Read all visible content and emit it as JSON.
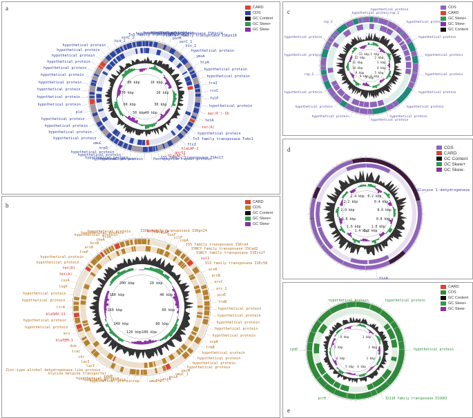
{
  "panels": {
    "a": {
      "label": "a",
      "legend": [
        {
          "name": "CARD",
          "color": "#d94432"
        },
        {
          "name": "CDS",
          "color": "#2c44a3"
        },
        {
          "name": "GC Content",
          "color": "#111111"
        },
        {
          "name": "GC Skew+",
          "color": "#2f9a4f"
        },
        {
          "name": "GC Skew-",
          "color": "#8b2fa3"
        }
      ],
      "ticks": [
        "10 kbp",
        "20 kbp",
        "30 kbp",
        "40 kbp",
        "50 kbp",
        "60 kbp",
        "70 kbp",
        "80 kbp"
      ],
      "genes": [
        "hin_2",
        "xerC_2",
        "Tn3 family transposase TnAs3",
        "hypothetical protein",
        "hypothetical protein",
        "hypothetical protein",
        "IS6 family transposase ISKpn24",
        "ISKra4 family transposase ISKpn19",
        "parM",
        "xerC_1",
        "hin_1",
        "hypothetical protein",
        "ymoA",
        "hlyA",
        "hypothetical protein",
        "hypothetical protein",
        "traI",
        "rcsC",
        "fulP",
        "hypothetical protein",
        "aac(6')-Ib",
        "tetA",
        "tet(A)",
        "hypothetical protein",
        "Tn3 family transposase TnAs1",
        "ftsI",
        "blaLAP-2",
        "qnrS1",
        "blaLAP-2",
        "IS5 family transposase ISAs17",
        "Pentapeptide repeat protein",
        "hypothetical protein",
        "hypothetical protein",
        "hypothetical protein",
        "hypothetical protein",
        "hypothetical protein",
        "nrpQ",
        "umuC",
        "hypothetical protein",
        "hypothetical protein",
        "hypothetical protein",
        "hypothetical protein",
        "pld",
        "hypothetical protein",
        "hypothetical protein",
        "hypothetical protein",
        "hypothetical protein",
        "hypothetical protein",
        "hypothetical protein",
        "hypothetical protein",
        "hypothetical protein",
        "hypothetical protein",
        "hypothetical protein"
      ]
    },
    "b": {
      "label": "b",
      "legend": [
        {
          "name": "CARD",
          "color": "#d94432"
        },
        {
          "name": "CDS",
          "color": "#b6812f"
        },
        {
          "name": "GC Content",
          "color": "#111111"
        },
        {
          "name": "GC Skew+",
          "color": "#2f9a4f"
        },
        {
          "name": "GC Skew-",
          "color": "#8b2fa3"
        }
      ],
      "ticks": [
        "20 kbp",
        "40 kbp",
        "60 kbp",
        "80 kbp",
        "100 kbp",
        "120 kbp",
        "140 kbp",
        "160 kbp",
        "180 kbp",
        "200 kbp"
      ],
      "genes": [
        "IS66 family transposase ISKpn24",
        "APH(3')-Ia",
        "cusS",
        "cusC",
        "cusF",
        "silP",
        "copA",
        "IS5 family transposase ISKra4",
        "ISNCY family transposase ISCad2",
        "ISNCY family transposase ISEcn27",
        "sul1",
        "IS3 family transposase ISEc58",
        "arsR",
        "arsB",
        "arsC",
        "ars_1",
        "pcoE",
        "traB",
        "hypothetical protein",
        "hypothetical protein",
        "hypothetical protein",
        "hypothetical protein",
        "hypothetical protein",
        "sipA",
        "trbB",
        "hypothetical protein",
        "hypothetical protein",
        "hypothetical protein",
        "hypothetical protein",
        "parM",
        "umuC_1",
        "psiA",
        "virB",
        "xerC_1",
        "umuC_2",
        "rep",
        "hypothetical protein",
        "hypothetical protein",
        "hypothetical protein",
        "pdeB",
        "Glycine betaine transporter",
        "Zinc-type alcohol dehydrogenase-like protein",
        "lacY",
        "lacI",
        "cdr",
        "trac",
        "dcm",
        "blaTEM-1",
        "mrx",
        "hypothetical protein",
        "hypothetical protein",
        "blaSHV-11",
        "ltrA",
        "hypothetical protein",
        "hypothetical protein",
        "logP",
        "cusA",
        "tet(A)",
        "tet(D)",
        "hypothetical protein",
        "hypothetical protein",
        "frmP",
        "arsB",
        "bcsB",
        "cheA",
        "rcsA",
        "hypothetical protein",
        "hypothetical protein",
        "hypothetical protein"
      ]
    },
    "c": {
      "label": "c",
      "legend": [
        {
          "name": "CDS",
          "color": "#8e63b8"
        },
        {
          "name": "CARD",
          "color": "#d94432"
        },
        {
          "name": "GC Skew+",
          "color": "#2f9a4f"
        },
        {
          "name": "GC Skew-",
          "color": "#8b2fa3"
        },
        {
          "name": "GC Content",
          "color": "#111111"
        }
      ],
      "ticks": [
        "1 kbp",
        "2 kbp",
        "3 kbp",
        "4 kbp",
        "5 kbp",
        "6 kbp",
        "7 kbp",
        "8 kbp",
        "9 kbp",
        "10 kbp",
        "11 kbp",
        "12 kbp",
        "13 kbp"
      ],
      "genes": [
        "hypothetical protein",
        "hypothetical protein",
        "rop_1",
        "hypothetical protein",
        "hypothetical protein",
        "hypothetical protein",
        "hypothetical protein",
        "hypothetical protein",
        "hypothetical protein",
        "hypothetical protein",
        "hypothetical protein",
        "hypothetical protein",
        "hypothetical protein",
        "hypothetical protein",
        "rop_2",
        "hypothetical protein",
        "hypothetical protein",
        "rop_3"
      ]
    },
    "d": {
      "label": "d",
      "legend": [
        {
          "name": "CDS",
          "color": "#8e63b8"
        },
        {
          "name": "CARD",
          "color": "#d94432"
        },
        {
          "name": "GC Content",
          "color": "#111111"
        },
        {
          "name": "GC Skew+",
          "color": "#2f9a4f"
        },
        {
          "name": "GC Skew-",
          "color": "#8b2fa3"
        }
      ],
      "ticks": [
        "0.2 kbp",
        "0.4 kbp",
        "0.6 kbp",
        "0.8 kbp",
        "1.0 kbp",
        "1.2 kbp",
        "1.4 kbp",
        "1.6 kbp",
        "1.8 kbp",
        "2.0 kbp",
        "2.2 kbp",
        "2.4 kbp"
      ],
      "genes": [
        "Glucose 1-dehydrogenase",
        "finA"
      ]
    },
    "e": {
      "label": "e",
      "legend": [
        {
          "name": "CARD",
          "color": "#d94432"
        },
        {
          "name": "CDS",
          "color": "#2f8a3a"
        },
        {
          "name": "GC Content",
          "color": "#111111"
        },
        {
          "name": "GC Skew+",
          "color": "#2f9a4f"
        },
        {
          "name": "GC Skew-",
          "color": "#8b2fa3"
        }
      ],
      "ticks": [
        "1 kbp",
        "2 kbp",
        "3 kbp",
        "4 kbp",
        "5 kbp",
        "6 kbp",
        "7 kbp",
        "8 kbp"
      ],
      "genes": [
        "hypothetical protein",
        "hypothetical protein",
        "hypothetical protein",
        "IS110 family transposase IS1663",
        "pcrH",
        "rpoD"
      ]
    }
  }
}
